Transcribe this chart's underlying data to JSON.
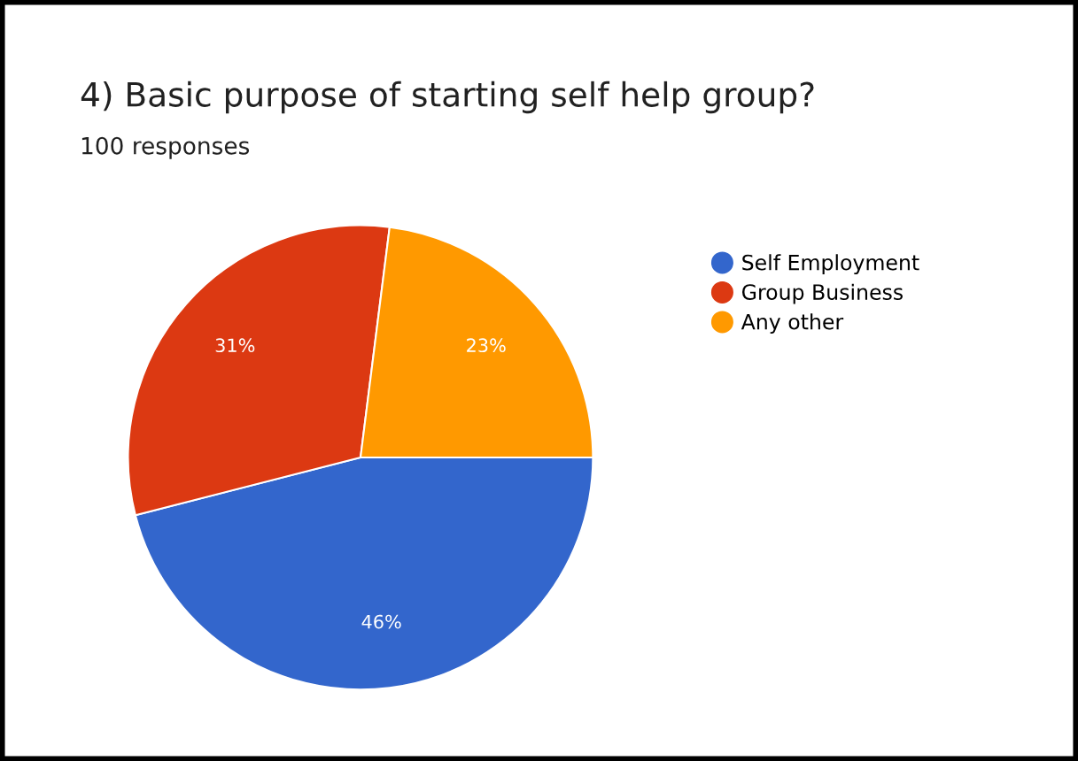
{
  "chart_data": {
    "type": "pie",
    "title": "4) Basic purpose of starting self help group?",
    "subtitle": "100 responses",
    "categories": [
      "Self Employment",
      "Group Business",
      "Any other"
    ],
    "values": [
      46,
      31,
      23
    ],
    "colors": [
      "#3366cc",
      "#dc3912",
      "#ff9900"
    ],
    "value_labels": [
      "46%",
      "31%",
      "23%"
    ],
    "legend": "top right"
  }
}
